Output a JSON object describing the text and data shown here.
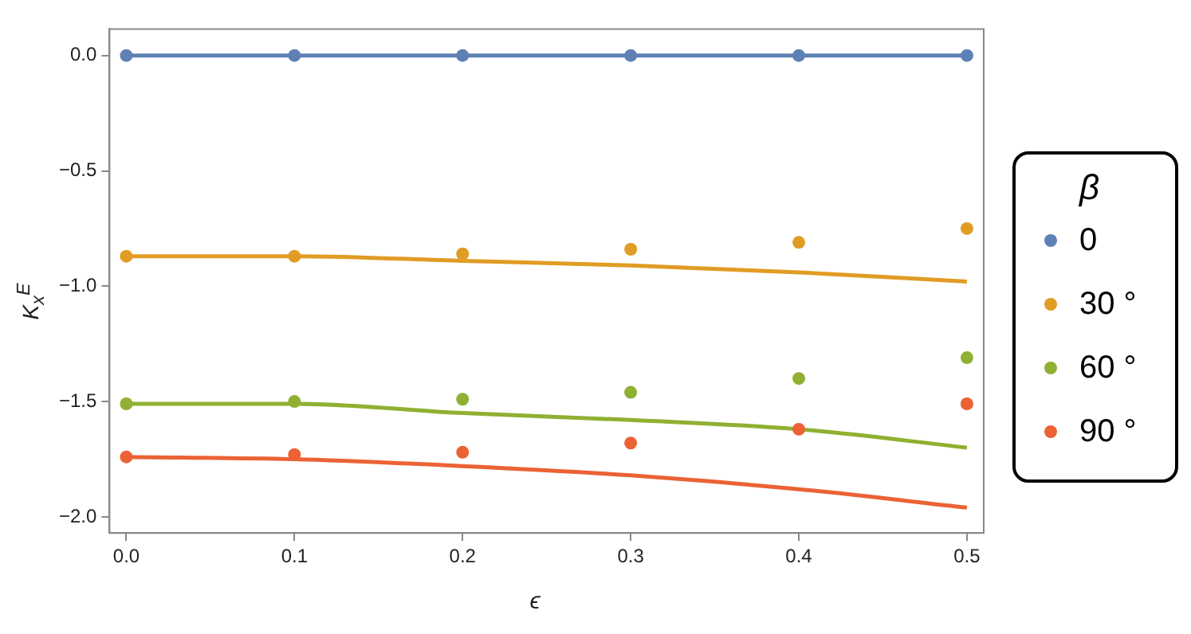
{
  "chart_data": {
    "type": "scatter",
    "xlabel": "ϵ",
    "ylabel": "K$_{x}$$^{E}$",
    "legend_title": "β",
    "legend": "right",
    "grid": false,
    "xlim": [
      -0.01,
      0.51
    ],
    "xticks": [
      {
        "value": 0,
        "label": "0.0"
      },
      0.1,
      0.2,
      0.3,
      0.4,
      0.5
    ],
    "ylim": [
      -2.07,
      0.115
    ],
    "yticks": [
      {
        "value": 0,
        "label": "0.0"
      },
      {
        "value": -0.5,
        "label": "−0.5"
      },
      {
        "value": -1,
        "label": "−1.0"
      },
      {
        "value": -1.5,
        "label": "−1.5"
      },
      {
        "value": -2,
        "label": "−2.0"
      }
    ],
    "x": [
      0,
      0.1,
      0.2,
      0.3,
      0.4,
      0.5
    ],
    "series": [
      {
        "type": "line",
        "marker": "none",
        "color": "#5e81b5",
        "values": [
          0,
          0,
          0,
          0,
          0,
          0
        ]
      },
      {
        "type": "line",
        "marker": "none",
        "color": "#e19c24",
        "values": [
          -0.87,
          -0.87,
          -0.89,
          -0.91,
          -0.94,
          -0.98
        ]
      },
      {
        "type": "line",
        "marker": "none",
        "color": "#8fb032",
        "values": [
          -1.51,
          -1.51,
          -1.55,
          -1.58,
          -1.62,
          -1.7
        ]
      },
      {
        "type": "line",
        "marker": "none",
        "color": "#eb6235",
        "values": [
          -1.74,
          -1.75,
          -1.78,
          -1.82,
          -1.88,
          -1.96
        ]
      },
      {
        "type": "scatter",
        "marker": "circle",
        "name": "0",
        "color": "#5e81b5",
        "values": [
          0,
          0,
          0,
          0,
          0,
          0
        ]
      },
      {
        "type": "scatter",
        "marker": "circle",
        "name": "30 °",
        "color": "#e19c24",
        "values": [
          -0.87,
          -0.87,
          -0.86,
          -0.84,
          -0.81,
          -0.75
        ]
      },
      {
        "type": "scatter",
        "marker": "circle",
        "name": "60 °",
        "color": "#8fb032",
        "values": [
          -1.51,
          -1.5,
          -1.49,
          -1.46,
          -1.4,
          -1.31
        ]
      },
      {
        "type": "scatter",
        "marker": "circle",
        "name": "90 °",
        "color": "#eb6235",
        "values": [
          -1.74,
          -1.73,
          -1.72,
          -1.68,
          -1.62,
          -1.51
        ]
      }
    ]
  }
}
